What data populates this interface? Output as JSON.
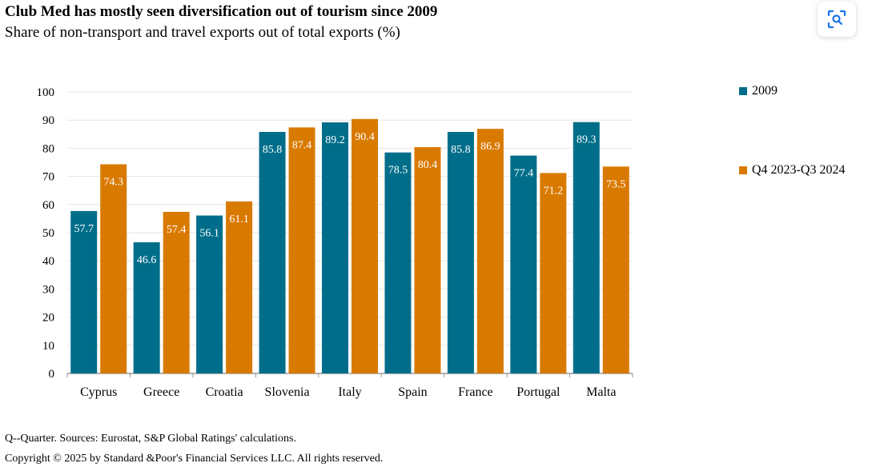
{
  "header": {
    "title": "Club Med has mostly seen diversification out of tourism since 2009",
    "subtitle": "Share of non-transport and travel exports out of total exports (%)"
  },
  "toolbar": {
    "icon": "image-search-icon"
  },
  "colors": {
    "series_2009": "#006e8a",
    "series_q4": "#d97a00",
    "grid": "#e6e6e6",
    "axis": "#999999"
  },
  "chart_data": {
    "type": "bar",
    "categories": [
      "Cyprus",
      "Greece",
      "Croatia",
      "Slovenia",
      "Italy",
      "Spain",
      "France",
      "Portugal",
      "Malta"
    ],
    "series": [
      {
        "name": "2009",
        "values": [
          57.7,
          46.6,
          56.1,
          85.8,
          89.2,
          78.5,
          85.8,
          77.4,
          89.3
        ]
      },
      {
        "name": "Q4 2023-Q3 2024",
        "values": [
          74.3,
          57.4,
          61.1,
          87.4,
          90.4,
          80.4,
          86.9,
          71.2,
          73.5
        ]
      }
    ],
    "ylim": [
      0,
      100
    ],
    "yticks": [
      0,
      10,
      20,
      30,
      40,
      50,
      60,
      70,
      80,
      90,
      100
    ],
    "grid": true,
    "legend_position": "right",
    "data_labels": true
  },
  "footer": {
    "note": "Q--Quarter. Sources: Eurostat, S&P Global Ratings' calculations.",
    "copyright": "Copyright © 2025 by Standard &Poor's Financial Services LLC. All rights reserved."
  }
}
